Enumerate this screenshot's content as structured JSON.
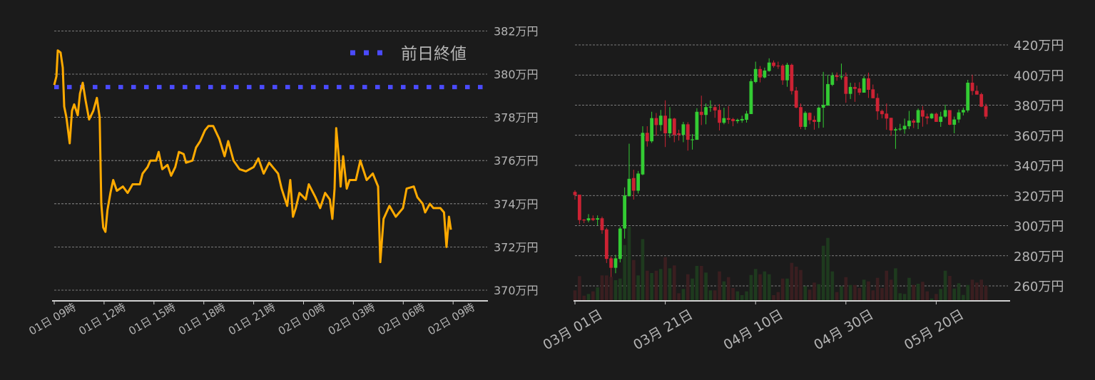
{
  "colors": {
    "background": "#1b1b1b",
    "line": "#ffaa00",
    "prev_close": "#4b4bff",
    "up": "#33cc33",
    "down": "#cc2233",
    "volume_up": "#1e3a1e",
    "volume_down": "#3a1e20",
    "text": "#b4b4b4"
  },
  "chart_data": [
    {
      "type": "line",
      "title": "",
      "xlabel": "",
      "ylabel": "",
      "grid": true,
      "legend": {
        "position": "top-right",
        "entries": [
          "前日終値"
        ]
      },
      "y_unit": "万円",
      "ylim": [
        369.5,
        382.5
      ],
      "y_ticks": [
        "370万円",
        "372万円",
        "374万円",
        "376万円",
        "378万円",
        "380万円",
        "382万円"
      ],
      "x_ticks": [
        "01日 09時",
        "01日 12時",
        "01日 15時",
        "01日 18時",
        "01日 21時",
        "02日 00時",
        "02日 03時",
        "02日 06時",
        "02日 09時"
      ],
      "prev_close": {
        "name": "前日終値",
        "value": 379.4
      },
      "series": [
        {
          "x": [
            "01日 09:00",
            "01日 09:08",
            "01日 09:13",
            "01日 09:23",
            "01日 09:31",
            "01日 09:36",
            "01日 09:44",
            "01日 09:56",
            "01日 10:04",
            "01日 10:12",
            "01日 10:25",
            "01日 10:33",
            "01日 10:43",
            "01日 10:53",
            "01日 11:06",
            "01日 11:21",
            "01日 11:34",
            "01日 11:44",
            "01日 11:50",
            "01日 11:57",
            "01日 12:05",
            "01日 12:12",
            "01日 12:23",
            "01日 12:33",
            "01日 12:46",
            "01日 13:08",
            "01日 13:25",
            "01日 13:43",
            "01日 14:09",
            "01日 14:19",
            "01日 14:37",
            "01日 14:47",
            "01日 15:08",
            "01日 15:17",
            "01日 15:30",
            "01日 15:49",
            "01日 16:02",
            "01日 16:17",
            "01日 16:30",
            "01日 16:47",
            "01日 16:56",
            "01日 17:19",
            "01日 17:32",
            "01日 17:47",
            "01日 18:04",
            "01日 18:17",
            "01日 18:34",
            "01日 18:56",
            "01日 19:15",
            "01日 19:28",
            "01日 19:47",
            "01日 20:09",
            "01日 20:32",
            "01日 21:00",
            "01日 21:17",
            "01日 21:36",
            "01日 21:56",
            "01日 22:28",
            "01日 22:41",
            "01日 23:01",
            "01日 23:12",
            "01日 23:22",
            "01日 23:32",
            "01日 23:45",
            "02日 00:08",
            "02日 00:19",
            "02日 00:43",
            "02日 01:00",
            "02日 01:18",
            "02日 01:35",
            "02日 01:44",
            "02日 01:52",
            "02日 01:58",
            "02日 02:07",
            "02日 02:14",
            "02日 02:23",
            "02日 02:36",
            "02日 02:46",
            "02日 03:09",
            "02日 03:25",
            "02日 03:48",
            "02日 04:10",
            "02日 04:29",
            "02日 04:37",
            "02日 04:49",
            "02日 05:10",
            "02日 05:33",
            "02日 05:59",
            "02日 06:12",
            "02日 06:38",
            "02日 06:51",
            "02日 07:10",
            "02日 07:19",
            "02日 07:36",
            "02日 07:49",
            "02日 08:14",
            "02日 08:27",
            "02日 08:36",
            "02日 08:45",
            "02日 08:52"
          ],
          "y": [
            379.5,
            379.9,
            381.1,
            381.0,
            380.3,
            378.5,
            378.0,
            376.8,
            378.3,
            378.6,
            378.1,
            379.1,
            379.6,
            378.8,
            377.9,
            378.3,
            378.9,
            378.0,
            374.0,
            372.9,
            372.7,
            373.7,
            374.5,
            375.1,
            374.6,
            374.8,
            374.5,
            374.9,
            374.9,
            375.4,
            375.7,
            376.0,
            376.0,
            376.4,
            375.6,
            375.8,
            375.3,
            375.7,
            376.4,
            376.3,
            375.9,
            376.0,
            376.6,
            376.9,
            377.4,
            377.6,
            377.6,
            377.0,
            376.2,
            376.9,
            376.0,
            375.6,
            375.5,
            375.7,
            376.1,
            375.4,
            375.9,
            375.4,
            374.7,
            373.9,
            375.1,
            373.4,
            373.8,
            374.5,
            374.2,
            374.9,
            374.3,
            373.8,
            374.5,
            374.2,
            373.3,
            374.7,
            377.5,
            376.2,
            374.8,
            376.2,
            374.7,
            375.1,
            375.1,
            376.0,
            375.1,
            375.4,
            374.8,
            371.3,
            373.3,
            373.9,
            373.4,
            373.8,
            374.7,
            374.8,
            374.3,
            374.0,
            373.6,
            374.0,
            373.8,
            373.8,
            373.6,
            372.0,
            373.4,
            372.8
          ]
        }
      ]
    },
    {
      "type": "candlestick",
      "title": "",
      "xlabel": "",
      "ylabel": "",
      "grid": true,
      "y_unit": "万円",
      "ylim": [
        250,
        428
      ],
      "y_ticks": [
        "260万円",
        "280万円",
        "300万円",
        "320万円",
        "340万円",
        "360万円",
        "380万円",
        "400万円",
        "420万円"
      ],
      "x_ticks": [
        "03月 01日",
        "03月 21日",
        "04月 10日",
        "04月 30日",
        "05月 20日"
      ],
      "columns": [
        "date",
        "open",
        "high",
        "low",
        "close",
        "volume_relative"
      ],
      "candles": [
        [
          "03/01",
          322.4,
          323.5,
          317.3,
          320.3,
          44
        ],
        [
          "03/02",
          320.6,
          320.6,
          301,
          303.7,
          104
        ],
        [
          "03/03",
          304,
          304.4,
          301.7,
          303.5,
          22
        ],
        [
          "03/04",
          303.5,
          307.6,
          302.2,
          304.9,
          29
        ],
        [
          "03/05",
          304.9,
          306.8,
          303,
          303.7,
          40
        ],
        [
          "03/06",
          304,
          306.8,
          300.2,
          304.9,
          57
        ],
        [
          "03/07",
          304.9,
          306,
          294.6,
          297,
          107
        ],
        [
          "03/08",
          297.5,
          298.6,
          275.2,
          277.9,
          107
        ],
        [
          "03/09",
          278.3,
          279.5,
          266,
          272,
          102
        ],
        [
          "03/10",
          272,
          280.6,
          268.4,
          278.3,
          87
        ],
        [
          "03/11",
          277.9,
          299.4,
          275.6,
          298.1,
          94
        ],
        [
          "03/12",
          298.1,
          325.4,
          291.4,
          320,
          235
        ],
        [
          "03/13",
          319.5,
          354.4,
          319.5,
          331.1,
          312
        ],
        [
          "03/14",
          331.6,
          337.1,
          317.3,
          323.2,
          172
        ],
        [
          "03/15",
          323.2,
          336.3,
          321.3,
          334.6,
          107
        ],
        [
          "03/16",
          334,
          366,
          333.5,
          361.6,
          260
        ],
        [
          "03/17",
          361.6,
          366,
          352.5,
          356,
          127
        ],
        [
          "03/18",
          356,
          375.6,
          354.9,
          371.4,
          117
        ],
        [
          "03/19",
          371.4,
          374.8,
          359.7,
          366.8,
          127
        ],
        [
          "03/20",
          366.8,
          376.8,
          362.9,
          373,
          134
        ],
        [
          "03/21",
          373,
          383.2,
          352.2,
          361.3,
          184
        ],
        [
          "03/22",
          361.3,
          378.7,
          358.4,
          371.1,
          137
        ],
        [
          "03/23",
          371.1,
          371.6,
          355.4,
          360.3,
          149
        ],
        [
          "03/24",
          361.3,
          363.7,
          356.5,
          360.3,
          32
        ],
        [
          "03/25",
          360.3,
          368.9,
          355.4,
          367.3,
          50
        ],
        [
          "03/26",
          367.3,
          368.7,
          349.8,
          357,
          112
        ],
        [
          "03/27",
          357,
          360.8,
          350.5,
          357.3,
          94
        ],
        [
          "03/28",
          357,
          378,
          357,
          375.6,
          147
        ],
        [
          "03/29",
          375.6,
          386.3,
          366.8,
          373.5,
          147
        ],
        [
          "03/30",
          373.5,
          381.1,
          367.3,
          378.7,
          119
        ],
        [
          "03/31",
          378.7,
          383.2,
          375.6,
          379,
          44
        ],
        [
          "04/01",
          378.7,
          380,
          371.6,
          376.5,
          44
        ],
        [
          "04/02",
          376.8,
          380.6,
          363.2,
          368.3,
          124
        ],
        [
          "04/03",
          368.3,
          378.3,
          367.3,
          371.4,
          82
        ],
        [
          "04/04",
          371.4,
          379.4,
          367.6,
          370.3,
          100
        ],
        [
          "04/05",
          370.8,
          371.6,
          366,
          369.4,
          54
        ],
        [
          "04/06",
          369.4,
          371.1,
          367.9,
          370.3,
          40
        ],
        [
          "04/07",
          369.8,
          373,
          368.3,
          370.8,
          24
        ],
        [
          "04/08",
          370.3,
          376.2,
          368.4,
          374.4,
          40
        ],
        [
          "04/09",
          374.1,
          397.5,
          374.1,
          395.9,
          109
        ],
        [
          "04/10",
          395.4,
          408.9,
          394.6,
          404,
          134
        ],
        [
          "04/11",
          404,
          406,
          395.1,
          398.4,
          112
        ],
        [
          "04/12",
          398.4,
          404.9,
          397.8,
          403,
          124
        ],
        [
          "04/13",
          402.7,
          411.1,
          402.2,
          408.3,
          112
        ],
        [
          "04/14",
          408.3,
          409.7,
          404.9,
          406,
          24
        ],
        [
          "04/15",
          406.3,
          408.9,
          404.1,
          406,
          37
        ],
        [
          "04/16",
          406.3,
          407.3,
          393.5,
          396.5,
          94
        ],
        [
          "04/17",
          396.5,
          408.1,
          392.2,
          406.8,
          94
        ],
        [
          "04/18",
          406.8,
          407.6,
          387.1,
          389.4,
          160
        ],
        [
          "04/19",
          389.7,
          392.1,
          377.9,
          378.4,
          144
        ],
        [
          "04/20",
          378.7,
          381.1,
          364.1,
          365.6,
          130
        ],
        [
          "04/21",
          365.6,
          376,
          363.7,
          374.9,
          62
        ],
        [
          "04/22",
          374.9,
          375.2,
          367.3,
          370,
          47
        ],
        [
          "04/23",
          370.3,
          372.9,
          363.7,
          368.9,
          77
        ],
        [
          "04/24",
          368.9,
          379.2,
          364.8,
          378.3,
          70
        ],
        [
          "04/25",
          378.3,
          402.1,
          365.1,
          380.2,
          232
        ],
        [
          "04/26",
          379.7,
          400.2,
          379.7,
          394,
          265
        ],
        [
          "04/27",
          393.5,
          401.7,
          392.7,
          399.8,
          124
        ],
        [
          "04/28",
          399.8,
          401.7,
          396.2,
          398.7,
          37
        ],
        [
          "04/29",
          399,
          407.6,
          397,
          399.1,
          62
        ],
        [
          "04/30",
          399,
          401.7,
          381.6,
          387.5,
          100
        ],
        [
          "05/01",
          387.5,
          394.9,
          384.1,
          392.1,
          67
        ],
        [
          "05/02",
          392.1,
          394.9,
          382.2,
          390.8,
          67
        ],
        [
          "05/03",
          391.1,
          395.2,
          386.7,
          388.3,
          54
        ],
        [
          "05/04",
          388.3,
          399.4,
          388.3,
          397.8,
          89
        ],
        [
          "05/05",
          397.8,
          401.6,
          384.8,
          390.2,
          82
        ],
        [
          "05/06",
          390.5,
          393.7,
          384.6,
          384.6,
          44
        ],
        [
          "05/07",
          384.8,
          387.8,
          370.3,
          375.9,
          97
        ],
        [
          "05/08",
          376.2,
          377.1,
          371.3,
          374,
          54
        ],
        [
          "05/09",
          374.4,
          381.1,
          363.7,
          371.1,
          127
        ],
        [
          "05/10",
          371.6,
          371.6,
          359.7,
          363.2,
          89
        ],
        [
          "05/11",
          363.2,
          365.2,
          351,
          364,
          137
        ],
        [
          "05/12",
          364.1,
          367.6,
          362.9,
          364.4,
          32
        ],
        [
          "05/13",
          364,
          371.1,
          361,
          366.3,
          29
        ],
        [
          "05/14",
          366,
          376.2,
          364.1,
          369.7,
          97
        ],
        [
          "05/15",
          369.7,
          370.8,
          364.8,
          368.4,
          67
        ],
        [
          "05/16",
          368.4,
          377.8,
          364.1,
          376.7,
          72
        ],
        [
          "05/17",
          376.7,
          379.4,
          365.7,
          372.4,
          80
        ],
        [
          "05/18",
          372.5,
          374.4,
          367.3,
          371.3,
          40
        ],
        [
          "05/19",
          371.3,
          374.8,
          370.8,
          374.3,
          10
        ],
        [
          "05/20",
          374.3,
          375.1,
          368.9,
          368.9,
          29
        ],
        [
          "05/21",
          368.9,
          375.6,
          365.6,
          372.4,
          50
        ],
        [
          "05/22",
          372.4,
          380.3,
          371.6,
          376.7,
          127
        ],
        [
          "05/23",
          376.7,
          376.7,
          366.7,
          367,
          105
        ],
        [
          "05/24",
          367,
          372.4,
          361.3,
          370.5,
          52
        ],
        [
          "05/25",
          370.5,
          377.1,
          368.3,
          375.2,
          74
        ],
        [
          "05/26",
          375.2,
          378.4,
          373.2,
          376.8,
          25
        ],
        [
          "05/27",
          376.5,
          396.8,
          375.2,
          394.9,
          67
        ],
        [
          "05/28",
          394.9,
          400.2,
          386.7,
          389.4,
          89
        ],
        [
          "05/29",
          389.5,
          393,
          387,
          387,
          77
        ],
        [
          "05/30",
          387.3,
          388.3,
          378.7,
          379,
          89
        ],
        [
          "05/31",
          379.4,
          381,
          370.8,
          372.4,
          64
        ]
      ]
    }
  ]
}
